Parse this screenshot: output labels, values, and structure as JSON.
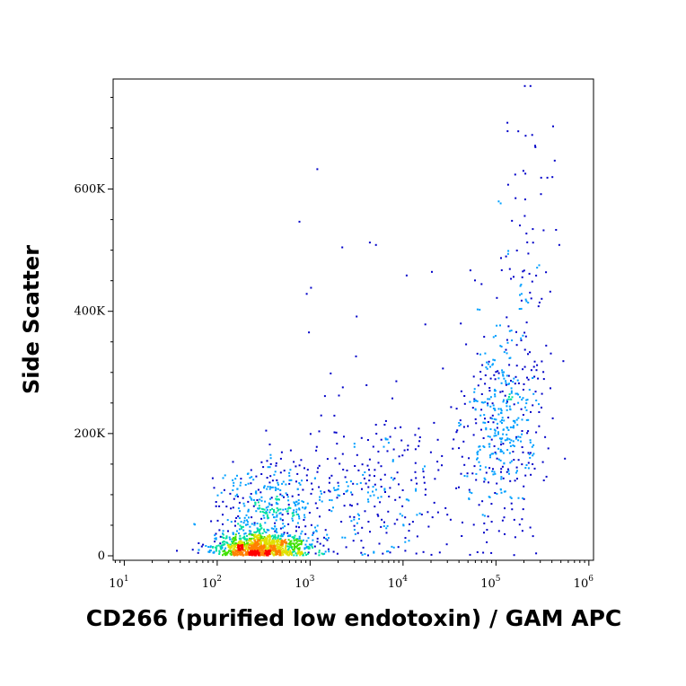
{
  "chart_data": {
    "type": "scatter",
    "subtype": "flow-cytometry-density-dot-plot",
    "title": "",
    "xlabel": "CD266 (purified low endotoxin) / GAM APC",
    "ylabel": "Side Scatter",
    "x_scale": "log",
    "y_scale": "linear",
    "xlim": [
      10,
      1000000
    ],
    "ylim": [
      0,
      780000
    ],
    "grid": false,
    "legend": "none",
    "x_ticks": [
      {
        "value": 10,
        "base": "10",
        "exp": "1"
      },
      {
        "value": 100,
        "base": "10",
        "exp": "2"
      },
      {
        "value": 1000,
        "base": "10",
        "exp": "3"
      },
      {
        "value": 10000,
        "base": "10",
        "exp": "4"
      },
      {
        "value": 100000,
        "base": "10",
        "exp": "5"
      },
      {
        "value": 1000000,
        "base": "10",
        "exp": "6"
      }
    ],
    "y_ticks": [
      {
        "value": 0,
        "label": "0"
      },
      {
        "value": 200000,
        "label": "200K"
      },
      {
        "value": 400000,
        "label": "400K"
      },
      {
        "value": 600000,
        "label": "600K"
      }
    ],
    "density_colors": [
      "#0000c8",
      "#00a0ff",
      "#00e0a0",
      "#40e000",
      "#e0e000",
      "#ff8000",
      "#ff0000"
    ],
    "populations": [
      {
        "name": "",
        "x_log10_center": 2.45,
        "x_log10_sd": 0.25,
        "y_center": 15000,
        "y_sd": 12000,
        "count": 900
      },
      {
        "name": "",
        "x_log10_center": 2.55,
        "x_log10_sd": 0.3,
        "y_center": 70000,
        "y_sd": 45000,
        "count": 450
      },
      {
        "name": "",
        "x_log10_center": 3.7,
        "x_log10_sd": 0.45,
        "y_center": 110000,
        "y_sd": 70000,
        "count": 280
      },
      {
        "name": "",
        "x_log10_center": 5.05,
        "x_log10_sd": 0.22,
        "y_center": 210000,
        "y_sd": 90000,
        "count": 420
      },
      {
        "name": "",
        "x_log10_center": 5.3,
        "x_log10_sd": 0.15,
        "y_center": 430000,
        "y_sd": 130000,
        "count": 90
      }
    ],
    "points": [
      [
        1170,
        634000
      ],
      [
        2170,
        506000
      ],
      [
        3100,
        393000
      ],
      [
        4300,
        514000
      ],
      [
        5000,
        510000
      ],
      [
        10700,
        460000
      ],
      [
        20000,
        466000
      ],
      [
        17000,
        380000
      ],
      [
        110000,
        578000
      ],
      [
        130000,
        710000
      ],
      [
        170000,
        696000
      ],
      [
        200000,
        770000
      ],
      [
        230000,
        770000
      ],
      [
        240000,
        690000
      ],
      [
        260000,
        670000
      ],
      [
        300000,
        620000
      ],
      [
        350000,
        620000
      ],
      [
        420000,
        648000
      ],
      [
        470000,
        510000
      ],
      [
        520000,
        320000
      ],
      [
        750,
        548000
      ],
      [
        900,
        430000
      ],
      [
        1000,
        440000
      ],
      [
        950,
        367000
      ],
      [
        2200,
        277000
      ]
    ]
  }
}
